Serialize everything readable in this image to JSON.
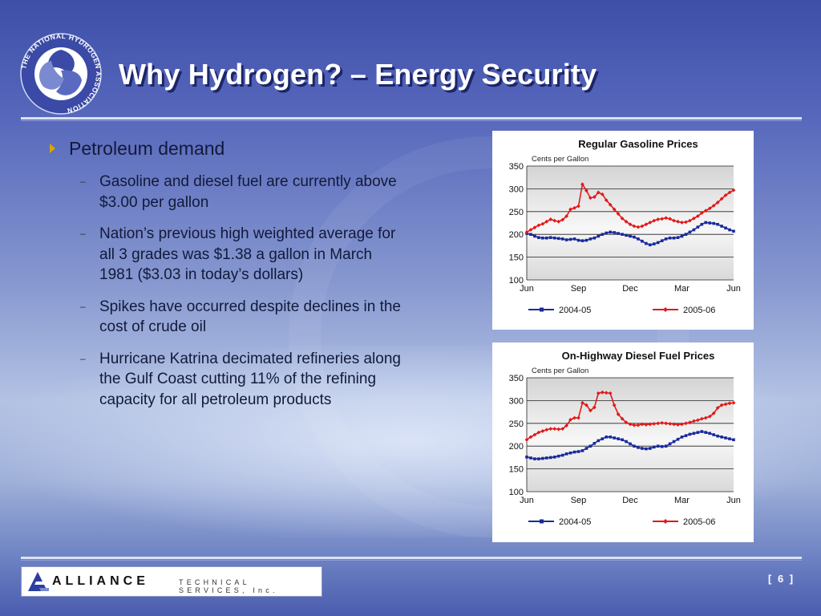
{
  "slide": {
    "title": "Why Hydrogen? – Energy Security",
    "page_number": "[ 6 ]"
  },
  "logo": {
    "text": "THE NATIONAL HYDROGEN ASSOCIATION"
  },
  "footer": {
    "company": "ALLIANCE",
    "company_sub": "TECHNICAL SERVICES, Inc."
  },
  "content": {
    "heading": "Petroleum demand",
    "points": [
      "Gasoline and diesel fuel are currently above $3.00 per gallon",
      "Nation’s previous high weighted average for all 3 grades was $1.38 a gallon in March 1981 ($3.03 in today’s dollars)",
      "Spikes have occurred despite declines in the cost of crude oil",
      "Hurricane Katrina decimated refineries along the Gulf Coast cutting 11% of the refining capacity for all petroleum products"
    ]
  },
  "colors": {
    "series_2004": "#1a2a9c",
    "series_2005": "#e01a1a"
  },
  "chart_data": [
    {
      "type": "line",
      "title": "Regular Gasoline Prices",
      "subtitle": "Cents per Gallon",
      "x_ticks": [
        "Jun",
        "Sep",
        "Dec",
        "Mar",
        "Jun"
      ],
      "y_ticks": [
        100,
        150,
        200,
        250,
        300,
        350
      ],
      "ylim": [
        100,
        350
      ],
      "grid": true,
      "legend": "bottom",
      "series": [
        {
          "name": "2004-05",
          "values": [
            202,
            200,
            196,
            193,
            192,
            192,
            193,
            192,
            191,
            190,
            188,
            189,
            190,
            187,
            186,
            187,
            190,
            192,
            196,
            200,
            203,
            205,
            204,
            202,
            200,
            198,
            196,
            194,
            190,
            185,
            180,
            177,
            179,
            182,
            186,
            190,
            192,
            192,
            193,
            196,
            200,
            205,
            210,
            216,
            222,
            226,
            225,
            224,
            222,
            218,
            214,
            210,
            207
          ]
        },
        {
          "name": "2005-06",
          "values": [
            205,
            210,
            215,
            220,
            223,
            228,
            233,
            230,
            228,
            232,
            240,
            255,
            258,
            262,
            310,
            296,
            280,
            282,
            292,
            288,
            275,
            265,
            255,
            245,
            235,
            228,
            222,
            218,
            216,
            218,
            222,
            226,
            230,
            233,
            234,
            236,
            234,
            230,
            228,
            226,
            227,
            230,
            235,
            240,
            247,
            252,
            257,
            263,
            270,
            278,
            286,
            292,
            297
          ]
        }
      ]
    },
    {
      "type": "line",
      "title": "On-Highway Diesel Fuel Prices",
      "subtitle": "Cents per Gallon",
      "x_ticks": [
        "Jun",
        "Sep",
        "Dec",
        "Mar",
        "Jun"
      ],
      "y_ticks": [
        100,
        150,
        200,
        250,
        300,
        350
      ],
      "ylim": [
        100,
        350
      ],
      "grid": true,
      "legend": "bottom",
      "series": [
        {
          "name": "2004-05",
          "values": [
            176,
            174,
            172,
            172,
            173,
            174,
            175,
            176,
            178,
            180,
            183,
            185,
            187,
            188,
            190,
            195,
            200,
            206,
            212,
            216,
            220,
            220,
            218,
            216,
            214,
            210,
            205,
            200,
            197,
            195,
            194,
            195,
            198,
            200,
            199,
            200,
            205,
            210,
            215,
            220,
            223,
            226,
            228,
            230,
            232,
            230,
            228,
            225,
            222,
            220,
            218,
            216,
            214
          ]
        },
        {
          "name": "2005-06",
          "values": [
            214,
            220,
            225,
            230,
            233,
            236,
            238,
            238,
            237,
            238,
            245,
            258,
            262,
            262,
            295,
            290,
            278,
            285,
            316,
            318,
            317,
            316,
            290,
            270,
            260,
            252,
            248,
            246,
            246,
            248,
            247,
            248,
            249,
            250,
            251,
            250,
            249,
            248,
            247,
            248,
            250,
            252,
            255,
            257,
            260,
            262,
            265,
            272,
            284,
            290,
            292,
            294,
            295
          ]
        }
      ]
    }
  ]
}
